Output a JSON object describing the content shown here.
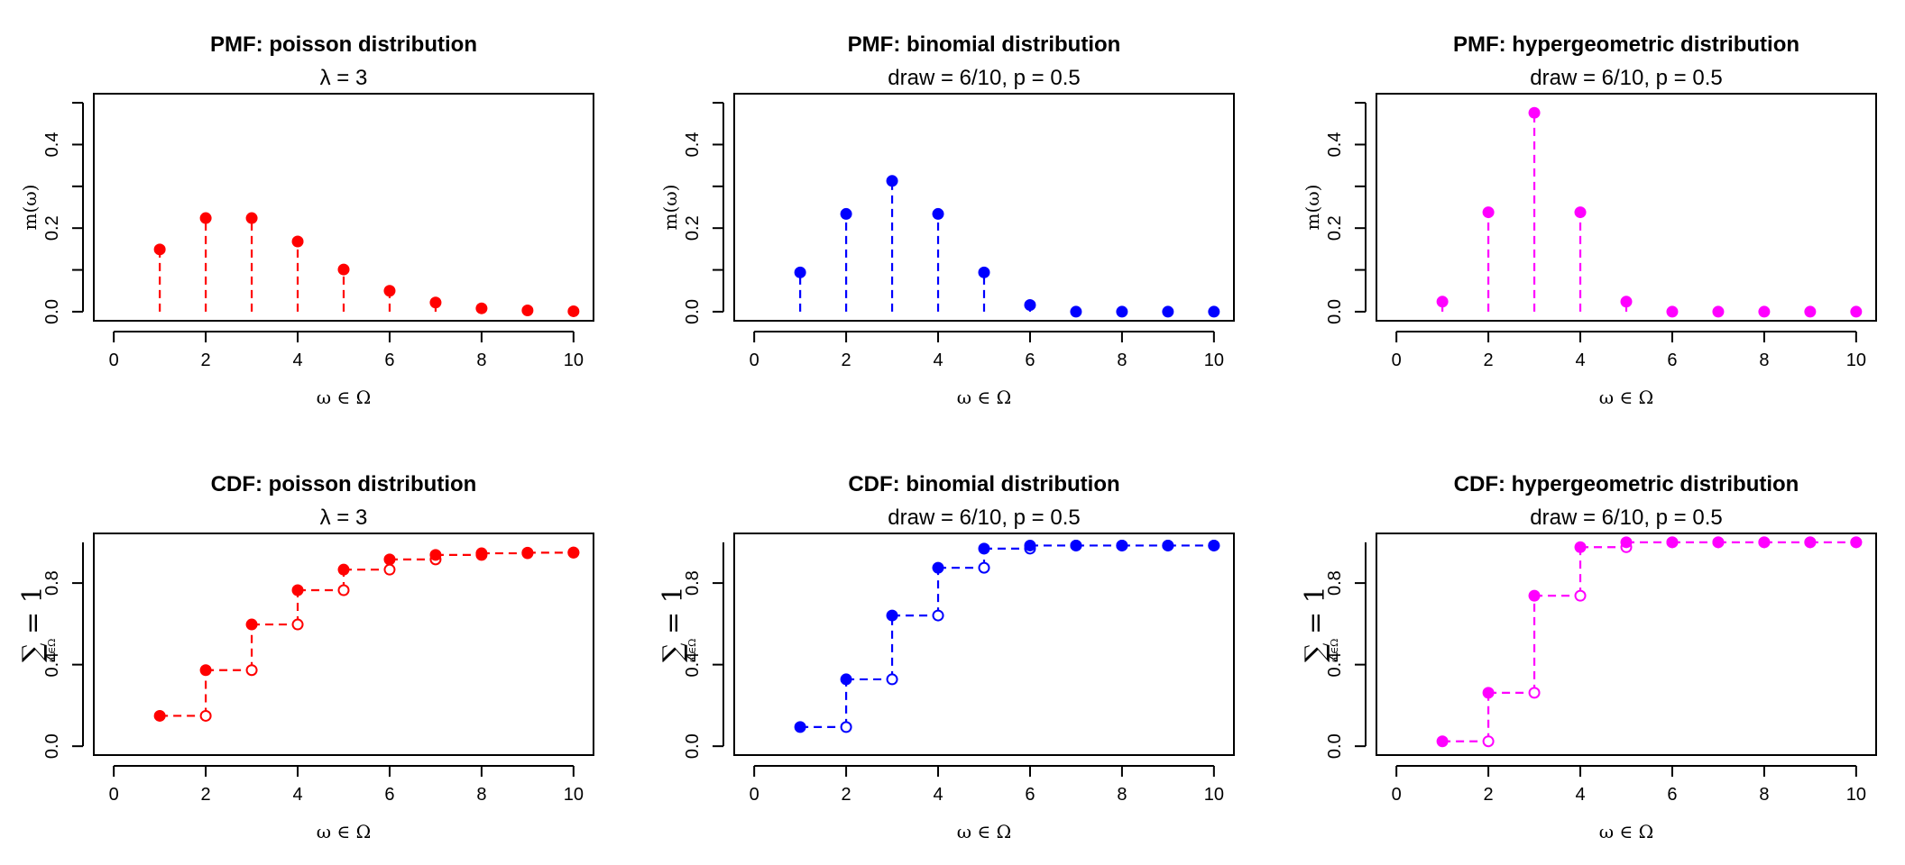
{
  "colors": {
    "poisson": "#ff0000",
    "binomial": "#0000ff",
    "hypergeometric": "#ff00ff"
  },
  "chart_data": [
    {
      "type": "stem",
      "title": "PMF: poisson distribution",
      "subtitle": "λ = 3",
      "xlabel": "ω ∈ Ω",
      "ylabel": "m(ω)",
      "color": "#ff0000",
      "x": [
        1,
        2,
        3,
        4,
        5,
        6,
        7,
        8,
        9,
        10
      ],
      "y": [
        0.149,
        0.224,
        0.224,
        0.168,
        0.101,
        0.05,
        0.022,
        0.008,
        0.003,
        0.001
      ],
      "xlim": [
        0,
        10
      ],
      "ylim": [
        0,
        0.5
      ],
      "xticks": [
        "0",
        "2",
        "4",
        "6",
        "8",
        "10"
      ],
      "yticks": [
        "0.0",
        "0.2",
        "0.4"
      ]
    },
    {
      "type": "stem",
      "title": "PMF: binomial distribution",
      "subtitle": "draw = 6/10, p = 0.5",
      "xlabel": "ω ∈ Ω",
      "ylabel": "m(ω)",
      "color": "#0000ff",
      "x": [
        1,
        2,
        3,
        4,
        5,
        6,
        7,
        8,
        9,
        10
      ],
      "y": [
        0.094,
        0.234,
        0.313,
        0.234,
        0.094,
        0.016,
        0,
        0,
        0,
        0
      ],
      "xlim": [
        0,
        10
      ],
      "ylim": [
        0,
        0.5
      ],
      "xticks": [
        "0",
        "2",
        "4",
        "6",
        "8",
        "10"
      ],
      "yticks": [
        "0.0",
        "0.2",
        "0.4"
      ]
    },
    {
      "type": "stem",
      "title": "PMF: hypergeometric distribution",
      "subtitle": "draw = 6/10, p = 0.5",
      "xlabel": "ω ∈ Ω",
      "ylabel": "m(ω)",
      "color": "#ff00ff",
      "x": [
        1,
        2,
        3,
        4,
        5,
        6,
        7,
        8,
        9,
        10
      ],
      "y": [
        0.024,
        0.238,
        0.476,
        0.238,
        0.024,
        0,
        0,
        0,
        0,
        0
      ],
      "xlim": [
        0,
        10
      ],
      "ylim": [
        0,
        0.5
      ],
      "xticks": [
        "0",
        "2",
        "4",
        "6",
        "8",
        "10"
      ],
      "yticks": [
        "0.0",
        "0.2",
        "0.4"
      ]
    },
    {
      "type": "step",
      "title": "CDF: poisson distribution",
      "subtitle": "λ = 3",
      "xlabel": "ω ∈ Ω",
      "ylabel": "∑ = 1",
      "ylabel_sub": "ω∈Ω",
      "color": "#ff0000",
      "x": [
        1,
        2,
        3,
        4,
        5,
        6,
        7,
        8,
        9,
        10
      ],
      "y": [
        0.149,
        0.373,
        0.597,
        0.765,
        0.866,
        0.916,
        0.938,
        0.946,
        0.949,
        0.95
      ],
      "xlim": [
        0,
        10
      ],
      "ylim": [
        0,
        1
      ],
      "xticks": [
        "0",
        "2",
        "4",
        "6",
        "8",
        "10"
      ],
      "yticks": [
        "0.0",
        "0.4",
        "0.8"
      ]
    },
    {
      "type": "step",
      "title": "CDF: binomial distribution",
      "subtitle": "draw = 6/10, p = 0.5",
      "xlabel": "ω ∈ Ω",
      "ylabel": "∑ = 1",
      "ylabel_sub": "ω∈Ω",
      "color": "#0000ff",
      "x": [
        1,
        2,
        3,
        4,
        5,
        6,
        7,
        8,
        9,
        10
      ],
      "y": [
        0.094,
        0.328,
        0.641,
        0.875,
        0.969,
        0.984,
        0.984,
        0.984,
        0.984,
        0.984
      ],
      "xlim": [
        0,
        10
      ],
      "ylim": [
        0,
        1
      ],
      "xticks": [
        "0",
        "2",
        "4",
        "6",
        "8",
        "10"
      ],
      "yticks": [
        "0.0",
        "0.4",
        "0.8"
      ]
    },
    {
      "type": "step",
      "title": "CDF: hypergeometric distribution",
      "subtitle": "draw = 6/10, p = 0.5",
      "xlabel": "ω ∈ Ω",
      "ylabel": "∑ = 1",
      "ylabel_sub": "ω∈Ω",
      "color": "#ff00ff",
      "x": [
        1,
        2,
        3,
        4,
        5,
        6,
        7,
        8,
        9,
        10
      ],
      "y": [
        0.024,
        0.262,
        0.738,
        0.976,
        1.0,
        1.0,
        1.0,
        1.0,
        1.0,
        1.0
      ],
      "xlim": [
        0,
        10
      ],
      "ylim": [
        0,
        1
      ],
      "xticks": [
        "0",
        "2",
        "4",
        "6",
        "8",
        "10"
      ],
      "yticks": [
        "0.0",
        "0.4",
        "0.8"
      ]
    }
  ]
}
